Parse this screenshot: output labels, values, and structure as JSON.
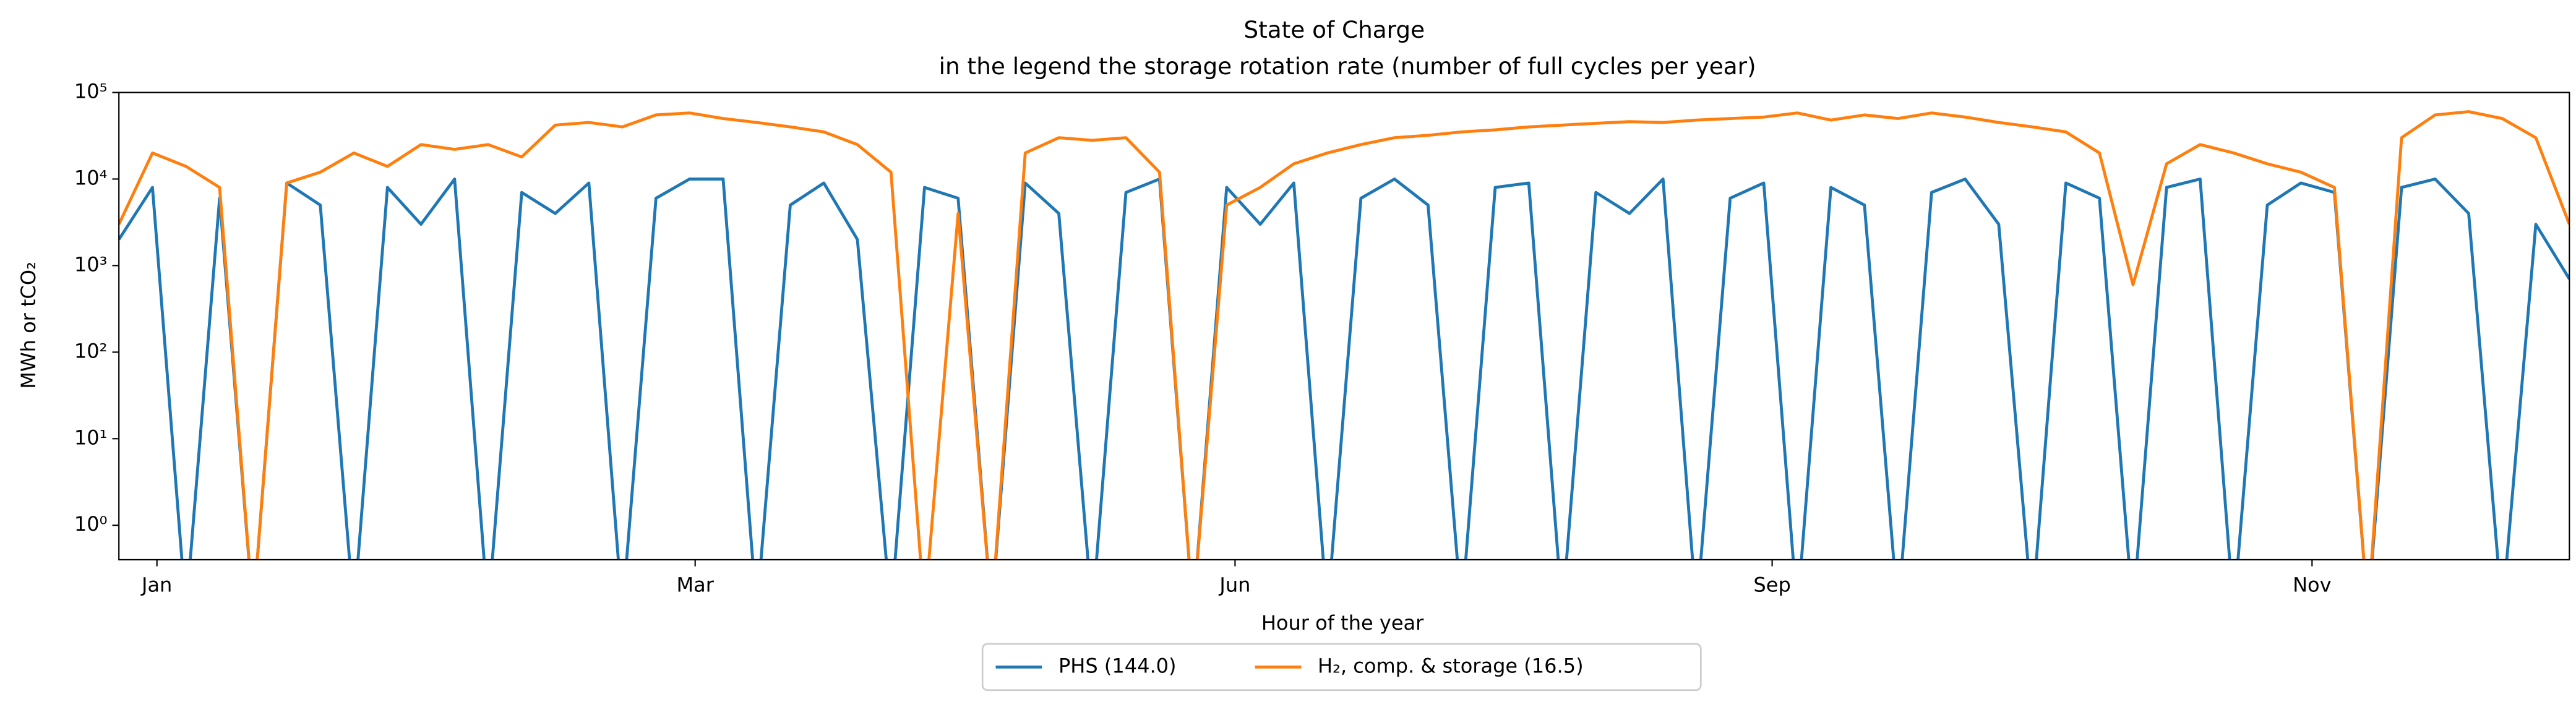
{
  "chart_data": {
    "type": "line",
    "title": "State of Charge",
    "subtitle": "in the legend the storage rotation rate (number of full cycles per year)",
    "x_label": "Hour of the year",
    "y_label": "MWh or tCO₂",
    "log_y": true,
    "legend_position": "bottom",
    "x": [
      0,
      120,
      240,
      360,
      480,
      600,
      720,
      840,
      960,
      1080,
      1200,
      1320,
      1440,
      1560,
      1680,
      1800,
      1920,
      2040,
      2160,
      2280,
      2400,
      2520,
      2640,
      2760,
      2880,
      3000,
      3120,
      3240,
      3360,
      3480,
      3600,
      3720,
      3840,
      3960,
      4080,
      4200,
      4320,
      4440,
      4560,
      4680,
      4800,
      4920,
      5040,
      5160,
      5280,
      5400,
      5520,
      5640,
      5760,
      5880,
      6000,
      6120,
      6240,
      6360,
      6480,
      6600,
      6720,
      6840,
      6960,
      7080,
      7200,
      7320,
      7440,
      7560,
      7680,
      7800,
      7920,
      8040,
      8160,
      8280,
      8400,
      8520,
      8640,
      8760
    ],
    "xlim": [
      0,
      8760
    ],
    "xticks": [
      {
        "value": 136,
        "label": "Jan"
      },
      {
        "value": 2060,
        "label": "Mar"
      },
      {
        "value": 3990,
        "label": "Jun"
      },
      {
        "value": 5910,
        "label": "Sep"
      },
      {
        "value": 7840,
        "label": "Nov"
      }
    ],
    "ylim": [
      0.4,
      100000
    ],
    "yticks": [
      {
        "value": 1,
        "label": "10⁰"
      },
      {
        "value": 10,
        "label": "10¹"
      },
      {
        "value": 100,
        "label": "10²"
      },
      {
        "value": 1000,
        "label": "10³"
      },
      {
        "value": 10000,
        "label": "10⁴"
      },
      {
        "value": 100000,
        "label": "10⁵"
      }
    ],
    "series": [
      {
        "name": "PHS (144.0)",
        "color": "#1f77b4",
        "values": [
          2000,
          8000,
          0.1,
          6000,
          0.1,
          9000,
          5000,
          0.1,
          8000,
          3000,
          10000,
          0.1,
          7000,
          4000,
          9000,
          0.1,
          6000,
          10000,
          10000,
          0.1,
          5000,
          9000,
          2000,
          0.1,
          8000,
          6000,
          0.1,
          9000,
          4000,
          0.1,
          7000,
          10000,
          0.1,
          8000,
          3000,
          9000,
          0.1,
          6000,
          10000,
          5000,
          0.1,
          8000,
          9000,
          0.1,
          7000,
          4000,
          10000,
          0.1,
          6000,
          9000,
          0.1,
          8000,
          5000,
          0.1,
          7000,
          10000,
          3000,
          0.1,
          9000,
          6000,
          0.1,
          8000,
          10000,
          0.1,
          5000,
          9000,
          7000,
          0.1,
          8000,
          10000,
          4000,
          0.1,
          3000,
          700
        ]
      },
      {
        "name": "H₂, comp. & storage (16.5)",
        "color": "#ff7f0e",
        "values": [
          3000,
          20000,
          14000,
          8000,
          0.1,
          9000,
          12000,
          20000,
          14000,
          25000,
          22000,
          25000,
          18000,
          42000,
          45000,
          40000,
          55000,
          58000,
          50000,
          45000,
          40000,
          35000,
          25000,
          12000,
          0.1,
          4000,
          0.1,
          20000,
          30000,
          28000,
          30000,
          12000,
          0.1,
          5000,
          8000,
          15000,
          20000,
          25000,
          30000,
          32000,
          35000,
          37000,
          40000,
          42000,
          44000,
          46000,
          45000,
          48000,
          50000,
          52000,
          58000,
          48000,
          55000,
          50000,
          58000,
          52000,
          45000,
          40000,
          35000,
          20000,
          600,
          15000,
          25000,
          20000,
          15000,
          12000,
          8000,
          0.1,
          30000,
          55000,
          60000,
          50000,
          30000,
          3000
        ]
      }
    ]
  }
}
